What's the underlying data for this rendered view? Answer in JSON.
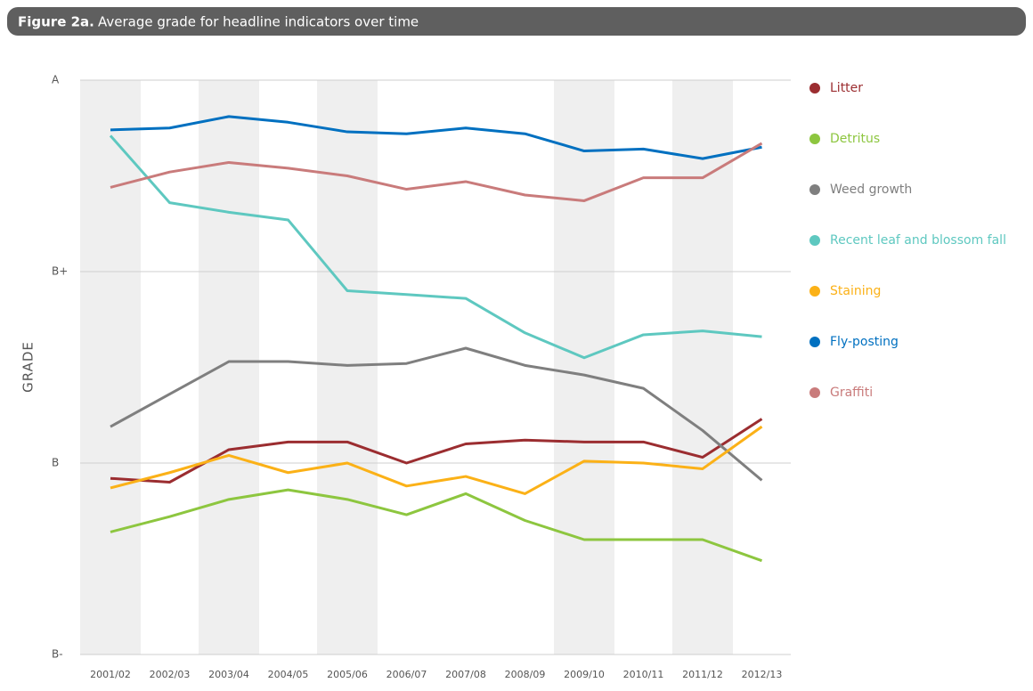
{
  "chart_data": {
    "type": "line",
    "title": "Figure 2a.",
    "subtitle": "Average grade for headline indicators over time",
    "ylabel": "GRADE",
    "categories": [
      "2001/02",
      "2002/03",
      "2003/04",
      "2004/05",
      "2005/06",
      "2006/07",
      "2007/08",
      "2008/09",
      "2009/10",
      "2010/11",
      "2011/12",
      "2012/13"
    ],
    "ylim": [
      0,
      3
    ],
    "yticks": [
      {
        "value": 0,
        "label": "B-"
      },
      {
        "value": 1,
        "label": "B"
      },
      {
        "value": 2,
        "label": "B+"
      },
      {
        "value": 3,
        "label": "A"
      }
    ],
    "grid": true,
    "legend": "right",
    "series": [
      {
        "name": "Litter",
        "color": "#9b2d30",
        "values": [
          0.92,
          0.9,
          1.07,
          1.11,
          1.11,
          1.0,
          1.1,
          1.12,
          1.11,
          1.11,
          1.03,
          1.23
        ]
      },
      {
        "name": "Detritus",
        "color": "#8dc63f",
        "values": [
          0.64,
          0.72,
          0.81,
          0.86,
          0.81,
          0.73,
          0.84,
          0.7,
          0.6,
          0.6,
          0.6,
          0.49
        ]
      },
      {
        "name": "Weed growth",
        "color": "#7f7f7f",
        "values": [
          1.19,
          1.36,
          1.53,
          1.53,
          1.51,
          1.52,
          1.6,
          1.51,
          1.46,
          1.39,
          1.17,
          0.91
        ]
      },
      {
        "name": "Recent leaf and blossom fall",
        "color": "#5ec8c0",
        "values": [
          2.71,
          2.36,
          2.31,
          2.27,
          1.9,
          1.88,
          1.86,
          1.68,
          1.55,
          1.67,
          1.69,
          1.66
        ]
      },
      {
        "name": "Staining",
        "color": "#fbb117",
        "values": [
          0.87,
          0.95,
          1.04,
          0.95,
          1.0,
          0.88,
          0.93,
          0.84,
          1.01,
          1.0,
          0.97,
          1.19
        ]
      },
      {
        "name": "Fly-posting",
        "color": "#0070c0",
        "values": [
          2.74,
          2.75,
          2.81,
          2.78,
          2.73,
          2.72,
          2.75,
          2.72,
          2.63,
          2.64,
          2.59,
          2.65
        ]
      },
      {
        "name": "Graffiti",
        "color": "#c97b7b",
        "values": [
          2.44,
          2.52,
          2.57,
          2.54,
          2.5,
          2.43,
          2.47,
          2.4,
          2.37,
          2.49,
          2.49,
          2.67
        ]
      }
    ]
  }
}
